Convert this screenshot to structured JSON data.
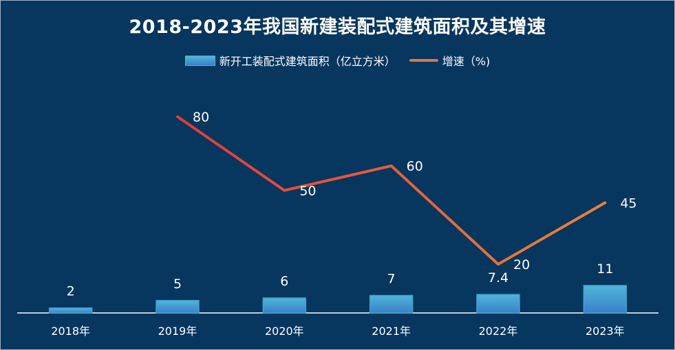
{
  "chart_data": {
    "type": "bar",
    "title": "2018-2023年我国新建装配式建筑面积及其增速",
    "categories": [
      "2018年",
      "2019年",
      "2020年",
      "2021年",
      "2022年",
      "2023年"
    ],
    "series": [
      {
        "name": "新开工装配式建筑面积（亿立方米）",
        "type": "bar",
        "values": [
          2,
          5,
          6,
          7,
          7.4,
          11
        ],
        "labels": [
          "2",
          "5",
          "6",
          "7",
          "7.4",
          "11"
        ]
      },
      {
        "name": "增速（%)",
        "type": "line",
        "values": [
          null,
          80,
          50,
          60,
          20,
          45
        ],
        "labels": [
          "",
          "80",
          "50",
          "60",
          "20",
          "45"
        ]
      }
    ],
    "bar_ylim": [
      0,
      70
    ],
    "line_ylim": [
      -40,
      100
    ],
    "legend_position": "top-center",
    "grid": false
  },
  "colors": {
    "background": "#07365f",
    "bar_top": "#4fb6d9",
    "bar_bottom": "#3a80c9",
    "line_start": "#e23b3b",
    "line_end": "#e8843a",
    "text": "#ffffff"
  }
}
